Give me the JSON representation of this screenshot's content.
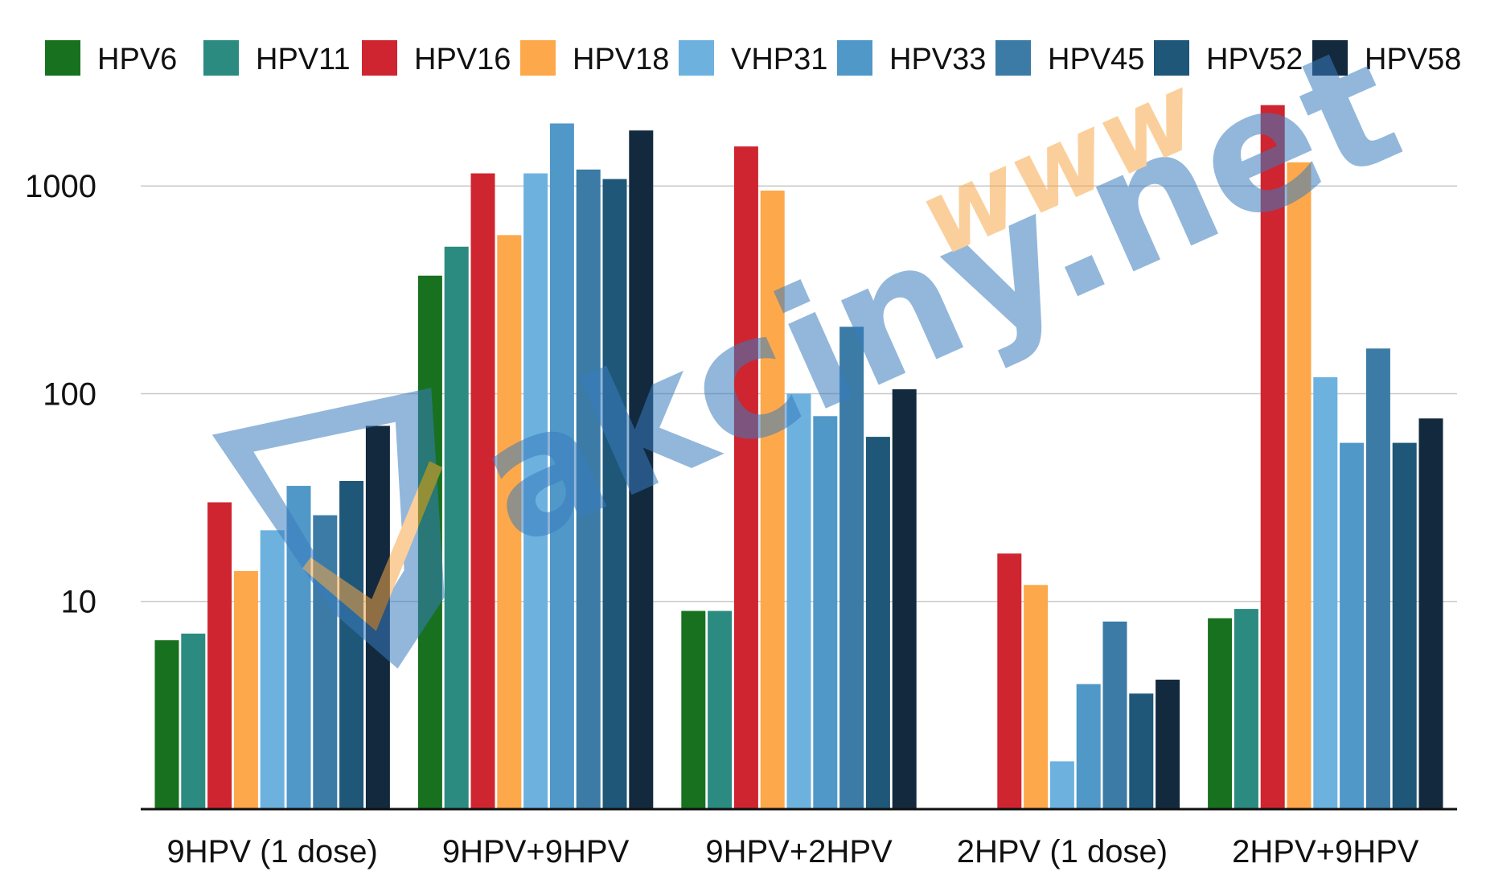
{
  "chart_data": {
    "type": "bar",
    "scale": "log",
    "ylim": [
      1,
      3000
    ],
    "yticks": [
      10,
      100,
      1000
    ],
    "ytick_labels": [
      "10",
      "100",
      "1000"
    ],
    "grid": true,
    "legend_position": "top",
    "categories": [
      "9HPV (1 dose)",
      "9HPV+9HPV",
      "9HPV+2HPV",
      "2HPV (1 dose)",
      "2HPV+9HPV"
    ],
    "series": [
      {
        "name": "HPV6",
        "color": "#17711f",
        "values": [
          6.5,
          370,
          9,
          null,
          8.3
        ]
      },
      {
        "name": "HPV11",
        "color": "#2b8b80",
        "values": [
          7,
          510,
          9,
          null,
          9.2
        ]
      },
      {
        "name": "HPV16",
        "color": "#cf2530",
        "values": [
          30,
          1150,
          1550,
          17,
          2450
        ]
      },
      {
        "name": "HPV18",
        "color": "#fda84b",
        "values": [
          14,
          580,
          950,
          12,
          1300
        ]
      },
      {
        "name": "VHP31",
        "color": "#6db2df",
        "values": [
          22,
          1150,
          100,
          1.7,
          120
        ]
      },
      {
        "name": "HPV33",
        "color": "#5098c8",
        "values": [
          36,
          2000,
          78,
          4,
          58
        ]
      },
      {
        "name": "HPV45",
        "color": "#3b7ba6",
        "values": [
          26,
          1200,
          210,
          8,
          165
        ]
      },
      {
        "name": "HPV52",
        "color": "#1f5778",
        "values": [
          38,
          1080,
          62,
          3.6,
          58
        ]
      },
      {
        "name": "HPV58",
        "color": "#12293e",
        "values": [
          70,
          1850,
          105,
          4.2,
          76
        ]
      }
    ]
  },
  "watermark": {
    "text": "akciny.net",
    "prefix": "www",
    "color_main": "#3a7dbd",
    "color_prefix": "#f7a84a"
  }
}
